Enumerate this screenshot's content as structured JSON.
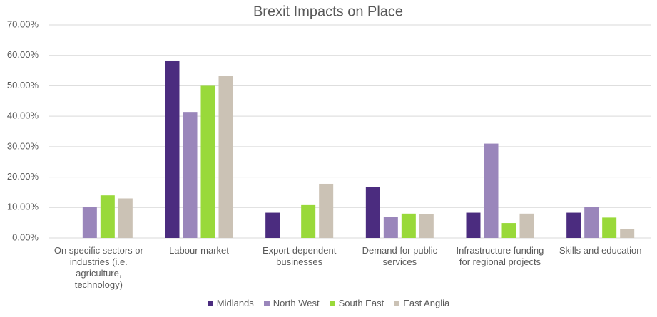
{
  "chart_data": {
    "type": "bar",
    "title": "Brexit Impacts on Place",
    "categories": [
      "On specific sectors or industries (i.e. agriculture, technology)",
      "Labour market",
      "Export-dependent businesses",
      "Demand for public services",
      "Infrastructure funding for regional projects",
      "Skills and education"
    ],
    "series": [
      {
        "name": "Midlands",
        "color": "#4b2c7f",
        "values": [
          0,
          58.3,
          8.3,
          16.7,
          8.3,
          8.3
        ]
      },
      {
        "name": "North West",
        "color": "#9a86bb",
        "values": [
          10.3,
          41.4,
          0,
          6.9,
          31.0,
          10.3
        ]
      },
      {
        "name": "South East",
        "color": "#99d93a",
        "values": [
          14.0,
          50.0,
          10.8,
          8.0,
          4.9,
          6.7
        ]
      },
      {
        "name": "East Anglia",
        "color": "#cbc2b5",
        "values": [
          13.0,
          53.2,
          17.8,
          7.8,
          8.0,
          2.9
        ]
      }
    ],
    "ylim": [
      0,
      70
    ],
    "yticks": [
      {
        "value": 0,
        "label": "0.00%"
      },
      {
        "value": 10,
        "label": "10.00%"
      },
      {
        "value": 20,
        "label": "20.00%"
      },
      {
        "value": 30,
        "label": "30.00%"
      },
      {
        "value": 40,
        "label": "40.00%"
      },
      {
        "value": 50,
        "label": "50.00%"
      },
      {
        "value": 60,
        "label": "60.00%"
      },
      {
        "value": 70,
        "label": "70.00%"
      }
    ],
    "grid": true,
    "legend": "bottom"
  }
}
